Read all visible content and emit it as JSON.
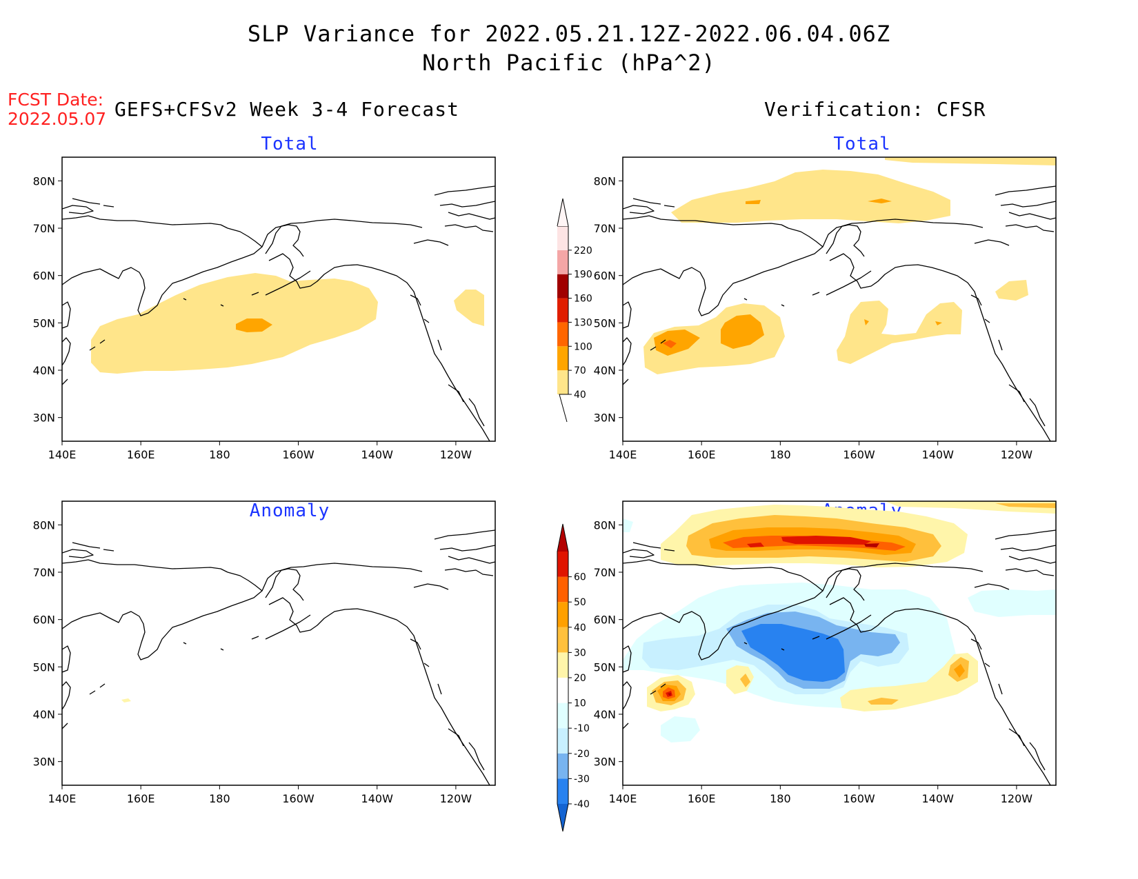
{
  "title": {
    "line1": "SLP Variance for 2022.05.21.12Z-2022.06.04.06Z",
    "line2": "North Pacific (hPa^2)"
  },
  "forecast": {
    "date_label": "FCST Date:",
    "date_value": "2022.05.07",
    "heading": "GEFS+CFSv2 Week 3-4 Forecast"
  },
  "verification": {
    "heading": "Verification: CFSR"
  },
  "panels": [
    {
      "id": "fcst-total",
      "title": "Total"
    },
    {
      "id": "verif-total",
      "title": "Total"
    },
    {
      "id": "fcst-anomaly",
      "title": "Anomaly"
    },
    {
      "id": "verif-anomaly",
      "title": "Anomaly"
    }
  ],
  "axes": {
    "lat_labels": [
      "80N",
      "70N",
      "60N",
      "50N",
      "40N",
      "30N"
    ],
    "lat_values": [
      80,
      70,
      60,
      50,
      40,
      30
    ],
    "lon_labels": [
      "140E",
      "160E",
      "180",
      "160W",
      "140W",
      "120W"
    ],
    "lon_values": [
      140,
      160,
      180,
      200,
      220,
      240
    ],
    "lat_range": [
      25,
      85
    ],
    "lon_range": [
      140,
      250
    ]
  },
  "total_colorbar": {
    "labels": [
      "40",
      "70",
      "100",
      "130",
      "160",
      "190",
      "220"
    ],
    "colors": [
      "#ffe58a",
      "#ffa500",
      "#ff6600",
      "#e01e00",
      "#a00000",
      "#f4a6a6",
      "#fde4e4"
    ]
  },
  "anomaly_colorbar": {
    "labels": [
      "-40",
      "-30",
      "-20",
      "-10",
      "10",
      "20",
      "30",
      "40",
      "50",
      "60"
    ],
    "colors": [
      "#1464d2",
      "#2882f0",
      "#78b4f0",
      "#c8f0ff",
      "#e0ffff",
      "#ffffff",
      "#fff5aa",
      "#ffc03c",
      "#ffa000",
      "#ff6000",
      "#e01400",
      "#b40000"
    ]
  }
}
